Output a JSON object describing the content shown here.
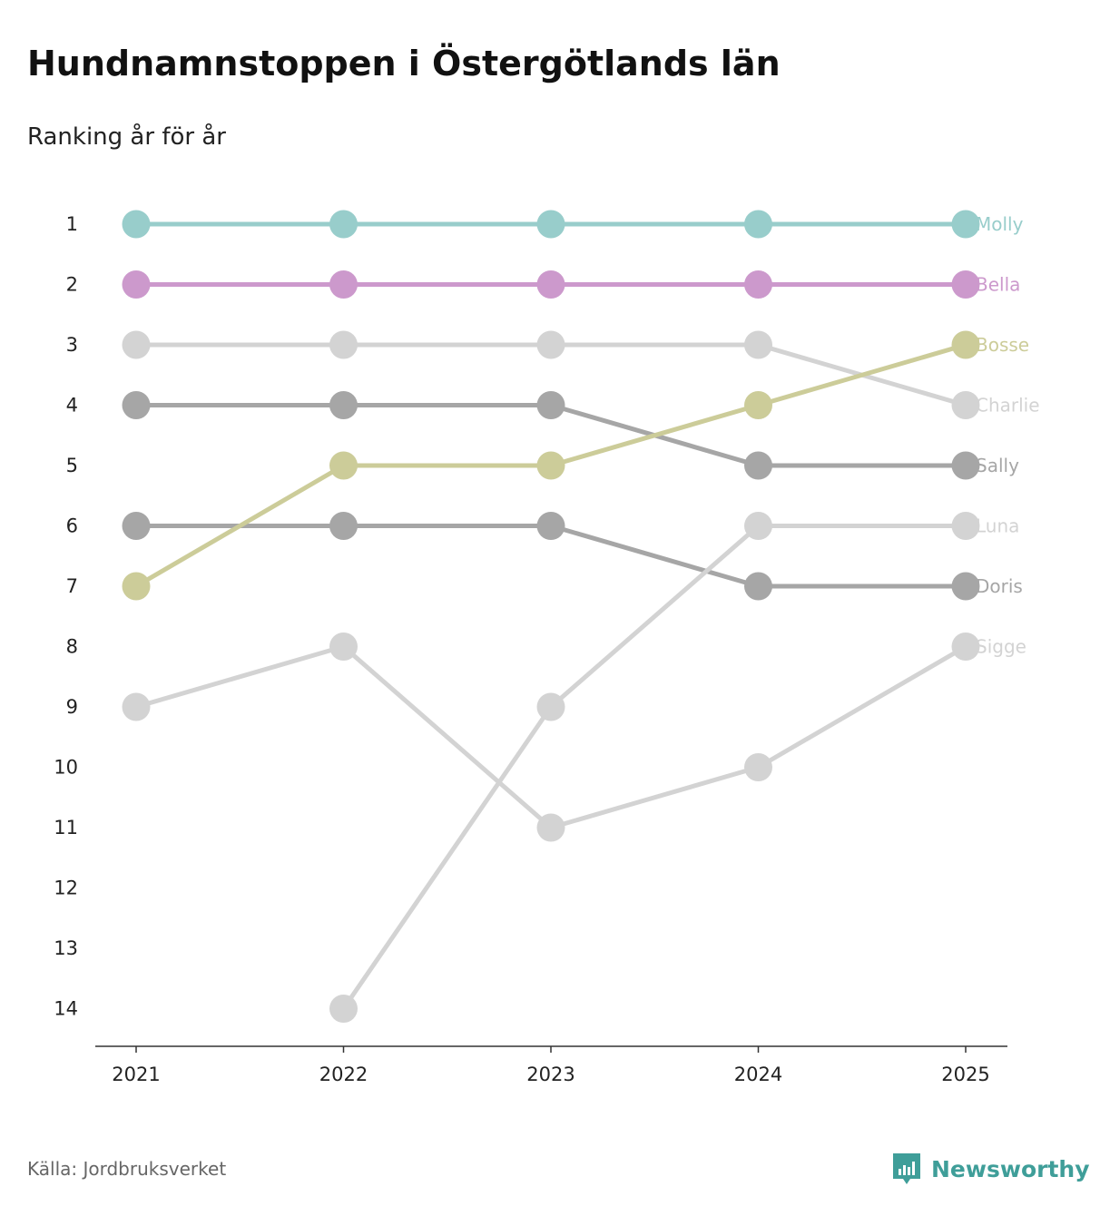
{
  "title": "Hundnamnstoppen i Östergötlands län",
  "subtitle": "Ranking år för år",
  "source": "Källa: Jordbruksverket",
  "brand": "Newsworthy",
  "colors": {
    "teal": "#98cdcb",
    "purple": "#cc99cc",
    "olive": "#cccc99",
    "light_gray": "#d3d3d3",
    "dark_gray": "#a6a6a6",
    "axis": "#333333",
    "brand": "#3f9e99"
  },
  "chart_data": {
    "type": "line",
    "title": "Hundnamnstoppen i Östergötlands län",
    "subtitle": "Ranking år för år",
    "xlabel": "",
    "ylabel": "",
    "x": [
      "2021",
      "2022",
      "2023",
      "2024",
      "2025"
    ],
    "y_ticks": [
      "1",
      "2",
      "3",
      "4",
      "5",
      "6",
      "7",
      "8",
      "9",
      "10",
      "11",
      "12",
      "13",
      "14"
    ],
    "ylim": [
      1,
      14
    ],
    "y_reversed": true,
    "grid": false,
    "series": [
      {
        "name": "Molly",
        "color": "#98cdcb",
        "values": [
          1,
          1,
          1,
          1,
          1
        ]
      },
      {
        "name": "Bella",
        "color": "#cc99cc",
        "values": [
          2,
          2,
          2,
          2,
          2
        ]
      },
      {
        "name": "Charlie",
        "color": "#d3d3d3",
        "values": [
          3,
          3,
          3,
          3,
          4
        ]
      },
      {
        "name": "Sally",
        "color": "#a6a6a6",
        "values": [
          4,
          4,
          4,
          5,
          5
        ]
      },
      {
        "name": "Doris",
        "color": "#a6a6a6",
        "values": [
          6,
          6,
          6,
          7,
          7
        ]
      },
      {
        "name": "Sigge",
        "color": "#d3d3d3",
        "values": [
          9,
          8,
          11,
          10,
          8
        ]
      },
      {
        "name": "Luna",
        "color": "#d3d3d3",
        "values": [
          null,
          14,
          9,
          6,
          6
        ]
      },
      {
        "name": "Bosse",
        "color": "#cccc99",
        "values": [
          7,
          5,
          5,
          4,
          3
        ]
      }
    ]
  }
}
